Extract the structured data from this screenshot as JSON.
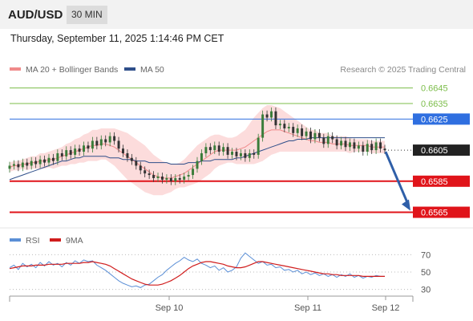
{
  "header": {
    "symbol": "AUD/USD",
    "timeframe": "30 MIN",
    "datetime": "Thursday, September 11, 2025 1:14:46 PM CET"
  },
  "legend": {
    "bb_label": "MA 20 + Bollinger Bands",
    "ma50_label": "MA 50",
    "copyright": "Research © 2025 Trading Central"
  },
  "rsi_legend": {
    "rsi_label": "RSI",
    "ma_label": "9MA"
  },
  "colors": {
    "bb": "#f08a8a",
    "bb_band": "#fcd6d6",
    "ma50": "#2f4f8a",
    "candle_up": "#3a7d3a",
    "candle_down": "#333333",
    "resistance": "#7cbd4a",
    "level_blue": "#2f6fe0",
    "support": "#e0141a",
    "arrow": "#2f5fa8",
    "rsi": "#5b8fd6",
    "rsi_ma": "#d01c1c"
  },
  "chart_data": [
    {
      "type": "line",
      "title": "",
      "subtitle": "",
      "x_labels": [
        "Sep 10",
        "Sep 11",
        "Sep 12"
      ],
      "ylim": [
        0.6557,
        0.665
      ],
      "levels": [
        {
          "value": 0.6645,
          "label": "0.6645",
          "kind": "resistance"
        },
        {
          "value": 0.6635,
          "label": "0.6635",
          "kind": "resistance"
        },
        {
          "value": 0.6625,
          "label": "0.6625",
          "kind": "pivot"
        },
        {
          "value": 0.6605,
          "label": "0.6605",
          "kind": "last_price"
        },
        {
          "value": 0.6585,
          "label": "0.6585",
          "kind": "support"
        },
        {
          "value": 0.6565,
          "label": "0.6565",
          "kind": "support"
        }
      ],
      "close": [
        0.6595,
        0.6596,
        0.6594,
        0.6597,
        0.6595,
        0.6598,
        0.6596,
        0.6599,
        0.6597,
        0.66,
        0.6598,
        0.6603,
        0.6601,
        0.6605,
        0.6602,
        0.6606,
        0.6604,
        0.6608,
        0.6606,
        0.6611,
        0.6608,
        0.6612,
        0.661,
        0.6614,
        0.6611,
        0.6606,
        0.6603,
        0.66,
        0.6598,
        0.6595,
        0.6592,
        0.659,
        0.6589,
        0.6587,
        0.6588,
        0.6586,
        0.6587,
        0.6585,
        0.6587,
        0.6586,
        0.6588,
        0.6589,
        0.6593,
        0.6598,
        0.6603,
        0.6607,
        0.6605,
        0.6608,
        0.6604,
        0.6607,
        0.6602,
        0.6604,
        0.6601,
        0.6603,
        0.66,
        0.6603,
        0.6602,
        0.6613,
        0.6628,
        0.6626,
        0.663,
        0.6621,
        0.6622,
        0.6619,
        0.662,
        0.6616,
        0.6619,
        0.6614,
        0.6617,
        0.6612,
        0.6616,
        0.6613,
        0.6609,
        0.6614,
        0.6612,
        0.6608,
        0.6611,
        0.6607,
        0.661,
        0.6606,
        0.6608,
        0.6604,
        0.6609,
        0.6605,
        0.661,
        0.6606,
        0.6605
      ],
      "ma20": [
        0.6594,
        0.6595,
        0.6595,
        0.6596,
        0.6596,
        0.6597,
        0.6597,
        0.6598,
        0.6598,
        0.6599,
        0.6599,
        0.66,
        0.6601,
        0.6602,
        0.6603,
        0.6604,
        0.6605,
        0.6606,
        0.6607,
        0.6608,
        0.6608,
        0.6609,
        0.6609,
        0.6608,
        0.6607,
        0.6605,
        0.6603,
        0.6601,
        0.6599,
        0.6597,
        0.6595,
        0.6593,
        0.6591,
        0.6589,
        0.6588,
        0.6587,
        0.6587,
        0.6587,
        0.6588,
        0.6589,
        0.659,
        0.6592,
        0.6594,
        0.6596,
        0.6598,
        0.66,
        0.6602,
        0.6604,
        0.6605,
        0.6605,
        0.6605,
        0.6605,
        0.6605,
        0.6606,
        0.6607,
        0.6609,
        0.6611,
        0.6613,
        0.6615,
        0.6617,
        0.6618,
        0.6618,
        0.6618,
        0.6617,
        0.6616,
        0.6615,
        0.6614,
        0.6613,
        0.6612,
        0.6611,
        0.6611,
        0.661,
        0.661,
        0.661,
        0.6609,
        0.6609,
        0.6609,
        0.6609,
        0.6608,
        0.6608,
        0.6608,
        0.6608,
        0.6608,
        0.6607,
        0.6607,
        0.6607,
        0.6607
      ],
      "ma50": [
        0.6586,
        0.6587,
        0.6588,
        0.6589,
        0.659,
        0.6591,
        0.6592,
        0.6593,
        0.6594,
        0.6595,
        0.6596,
        0.6597,
        0.6598,
        0.6598,
        0.6599,
        0.66,
        0.66,
        0.6601,
        0.6601,
        0.6601,
        0.6601,
        0.6601,
        0.6601,
        0.66,
        0.66,
        0.66,
        0.6599,
        0.6599,
        0.6599,
        0.6598,
        0.6598,
        0.6598,
        0.6597,
        0.6597,
        0.6597,
        0.6597,
        0.6597,
        0.6596,
        0.6596,
        0.6596,
        0.6596,
        0.6597,
        0.6597,
        0.6597,
        0.6598,
        0.6598,
        0.6598,
        0.6599,
        0.6599,
        0.6599,
        0.6599,
        0.6599,
        0.66,
        0.66,
        0.6601,
        0.6602,
        0.6603,
        0.6604,
        0.6605,
        0.6606,
        0.6607,
        0.6608,
        0.6609,
        0.661,
        0.6611,
        0.6611,
        0.6612,
        0.6612,
        0.6612,
        0.6613,
        0.6613,
        0.6613,
        0.6613,
        0.6613,
        0.6613,
        0.6613,
        0.6613,
        0.6613,
        0.6613,
        0.6613,
        0.6613,
        0.6613,
        0.6613,
        0.6613,
        0.6613,
        0.6613,
        0.6613
      ],
      "bb_halfwidth": [
        0.0003,
        0.0003,
        0.0003,
        0.0003,
        0.0004,
        0.0004,
        0.0004,
        0.0005,
        0.0005,
        0.0005,
        0.0006,
        0.0006,
        0.0006,
        0.0007,
        0.0007,
        0.0008,
        0.0008,
        0.0009,
        0.0009,
        0.001,
        0.001,
        0.001,
        0.001,
        0.0011,
        0.0012,
        0.0013,
        0.0014,
        0.0015,
        0.0015,
        0.0015,
        0.0015,
        0.0015,
        0.0014,
        0.0013,
        0.0012,
        0.0011,
        0.001,
        0.0009,
        0.0008,
        0.0008,
        0.0009,
        0.001,
        0.0011,
        0.0012,
        0.0012,
        0.0012,
        0.0012,
        0.0011,
        0.001,
        0.0009,
        0.0008,
        0.0008,
        0.0009,
        0.001,
        0.0011,
        0.0013,
        0.0015,
        0.0016,
        0.0017,
        0.0017,
        0.0016,
        0.0015,
        0.0014,
        0.0013,
        0.0012,
        0.0011,
        0.001,
        0.0009,
        0.0008,
        0.0007,
        0.0007,
        0.0006,
        0.0006,
        0.0006,
        0.0005,
        0.0005,
        0.0005,
        0.0005,
        0.0005,
        0.0004,
        0.0004,
        0.0004,
        0.0004,
        0.0004,
        0.0004,
        0.0004,
        0.0004
      ],
      "forecast": {
        "from": 0.6605,
        "to": 0.6565
      }
    },
    {
      "type": "line",
      "title": "",
      "ylim": [
        25,
        75
      ],
      "y_ticks": [
        70,
        50,
        30
      ],
      "series": [
        {
          "name": "RSI",
          "values": [
            55,
            58,
            53,
            60,
            56,
            59,
            55,
            61,
            57,
            62,
            58,
            60,
            56,
            61,
            58,
            63,
            60,
            64,
            62,
            63,
            58,
            55,
            52,
            48,
            44,
            40,
            37,
            35,
            33,
            34,
            32,
            35,
            36,
            40,
            44,
            47,
            52,
            56,
            60,
            63,
            67,
            64,
            62,
            65,
            60,
            58,
            55,
            57,
            52,
            55,
            50,
            52,
            56,
            66,
            72,
            68,
            64,
            60,
            62,
            58,
            59,
            55,
            56,
            52,
            53,
            50,
            52,
            48,
            50,
            47,
            49,
            46,
            48,
            45,
            47,
            44,
            47,
            45,
            48,
            44,
            46,
            43,
            45,
            44,
            46,
            45,
            45
          ]
        },
        {
          "name": "9MA",
          "values": [
            54,
            55,
            56,
            57,
            57,
            57,
            58,
            58,
            58,
            59,
            59,
            59,
            59,
            60,
            60,
            60,
            60,
            61,
            61,
            62,
            61,
            60,
            59,
            57,
            54,
            51,
            48,
            45,
            42,
            40,
            38,
            36,
            35,
            35,
            35,
            36,
            38,
            40,
            43,
            46,
            50,
            54,
            57,
            59,
            61,
            62,
            62,
            61,
            60,
            59,
            57,
            56,
            55,
            55,
            56,
            58,
            60,
            62,
            62,
            61,
            60,
            59,
            58,
            57,
            56,
            55,
            54,
            53,
            52,
            51,
            50,
            49,
            48,
            48,
            47,
            47,
            46,
            46,
            46,
            46,
            46,
            45,
            45,
            45,
            45,
            45,
            45
          ]
        }
      ]
    }
  ]
}
